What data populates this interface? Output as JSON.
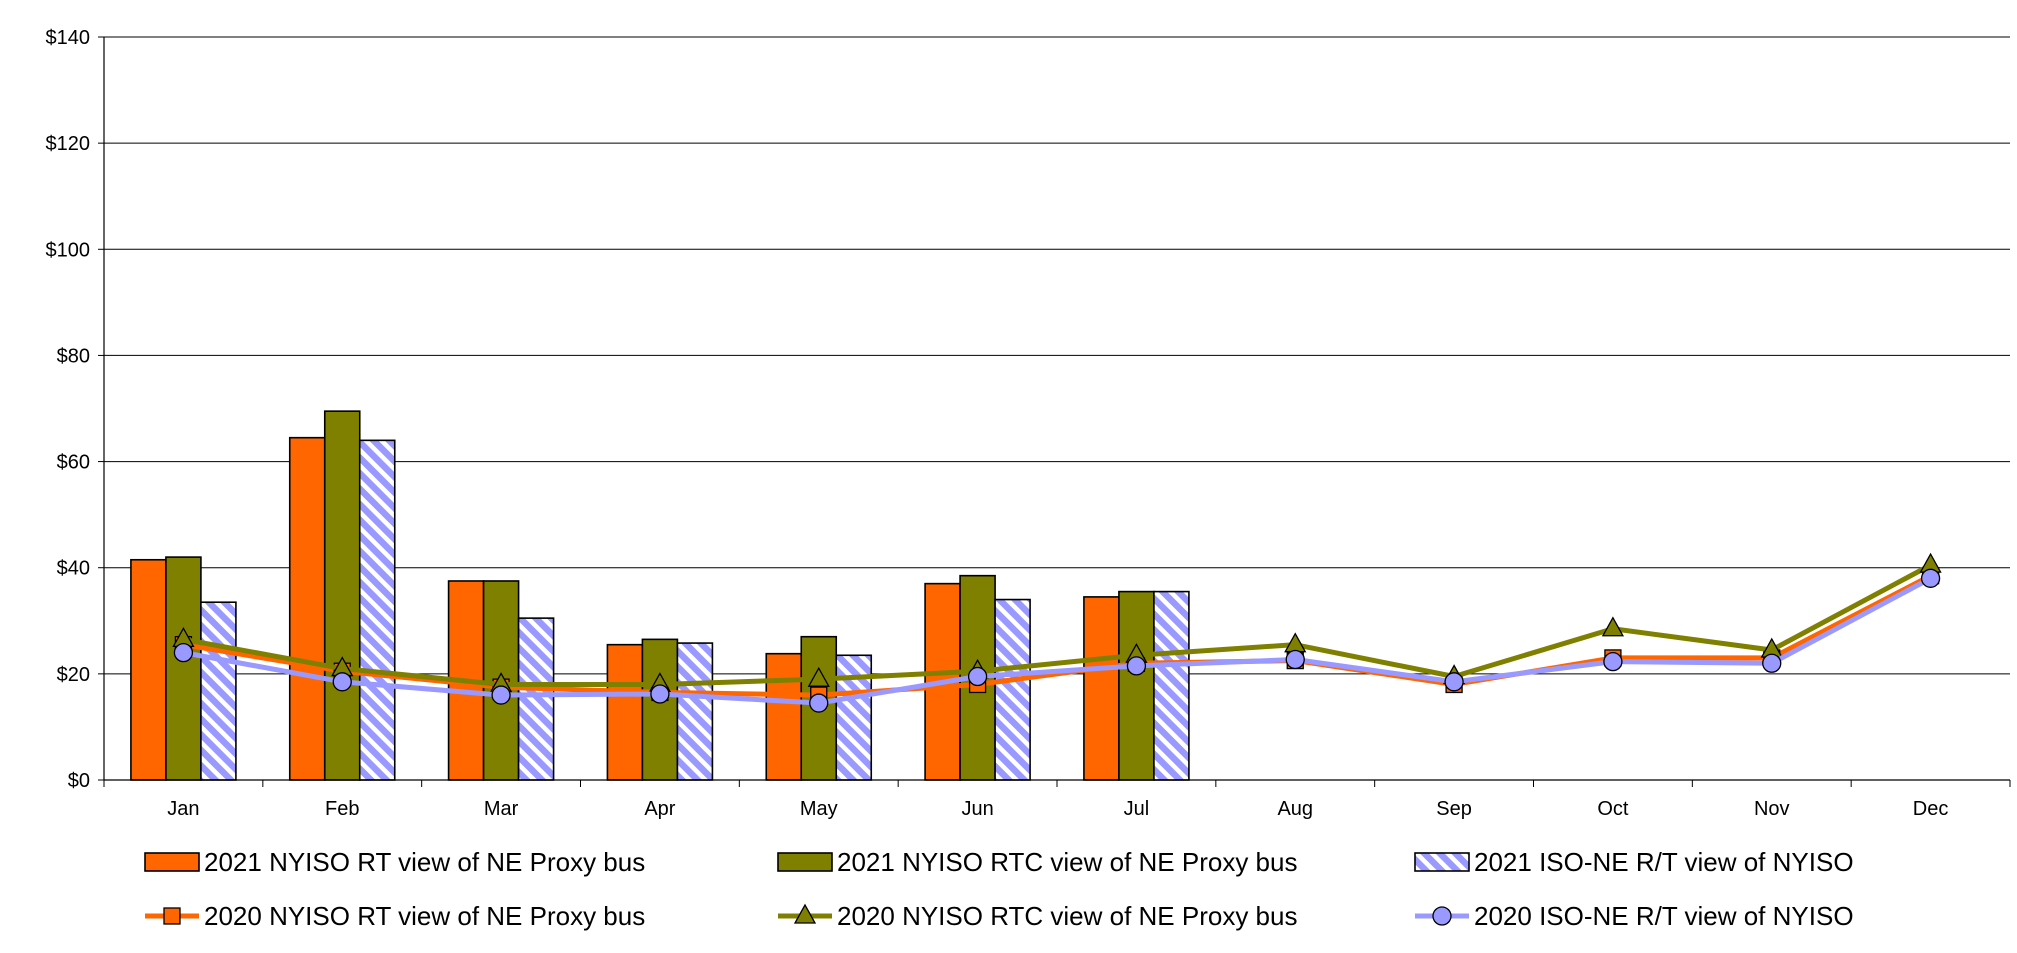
{
  "chart_data": {
    "type": "bar",
    "categories": [
      "Jan",
      "Feb",
      "Mar",
      "Apr",
      "May",
      "Jun",
      "Jul",
      "Aug",
      "Sep",
      "Oct",
      "Nov",
      "Dec"
    ],
    "ylim": [
      0,
      140
    ],
    "yticks": [
      0,
      20,
      40,
      60,
      80,
      100,
      120,
      140
    ],
    "ytick_labels": [
      "$0",
      "$20",
      "$40",
      "$60",
      "$80",
      "$100",
      "$120",
      "$140"
    ],
    "grid": true,
    "legend_position": "bottom",
    "bar_series": [
      {
        "name": "2021 NYISO RT view of NE Proxy bus",
        "color": "#ff6600",
        "pattern": "solid",
        "values": [
          41.5,
          64.5,
          37.5,
          25.5,
          23.8,
          37.0,
          34.5,
          null,
          null,
          null,
          null,
          null
        ]
      },
      {
        "name": "2021 NYISO RTC view of NE Proxy bus",
        "color": "#808000",
        "pattern": "solid",
        "values": [
          42.0,
          69.5,
          37.5,
          26.5,
          27.0,
          38.5,
          35.5,
          null,
          null,
          null,
          null,
          null
        ]
      },
      {
        "name": "2021 ISO-NE R/T view of NYISO",
        "color": "#9999ff",
        "pattern": "diagonal-stripes",
        "values": [
          33.5,
          64.0,
          30.5,
          25.8,
          23.5,
          34.0,
          35.5,
          null,
          null,
          null,
          null,
          null
        ]
      }
    ],
    "line_series": [
      {
        "name": "2020 NYISO RT view of NE Proxy bus",
        "color": "#ff6600",
        "marker": "square",
        "values": [
          25.5,
          20.5,
          17.5,
          16.5,
          16.0,
          18.0,
          22.0,
          22.5,
          18.0,
          23.0,
          23.0,
          38.5
        ]
      },
      {
        "name": "2020 NYISO RTC view of NE Proxy bus",
        "color": "#808000",
        "marker": "triangle",
        "values": [
          26.5,
          21.0,
          18.0,
          18.0,
          19.0,
          20.5,
          23.5,
          25.5,
          19.5,
          28.5,
          24.5,
          40.5
        ]
      },
      {
        "name": "2020 ISO-NE R/T view of NYISO",
        "color": "#9999ff",
        "marker": "circle",
        "values": [
          24.0,
          18.5,
          16.0,
          16.2,
          14.5,
          19.5,
          21.5,
          22.7,
          18.5,
          22.3,
          22.0,
          38.0
        ]
      }
    ]
  }
}
